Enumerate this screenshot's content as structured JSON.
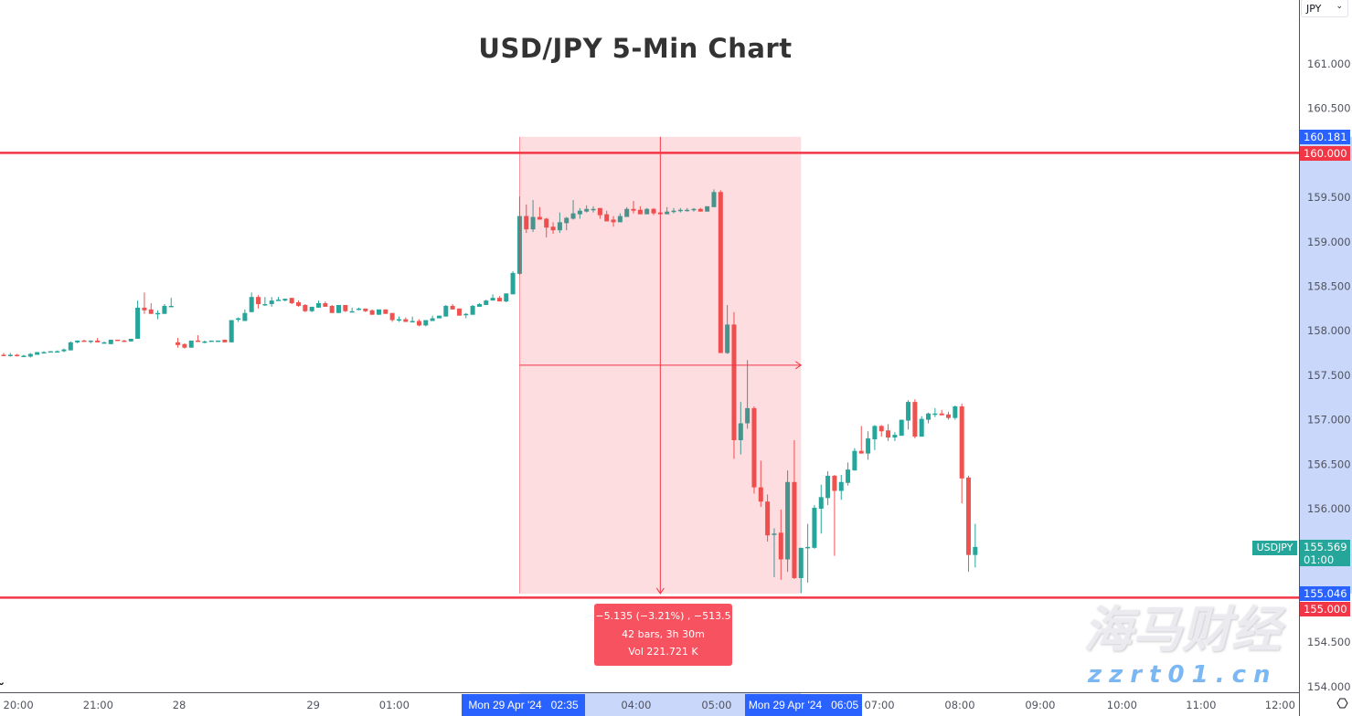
{
  "title": "USD/JPY 5-Min Chart",
  "currency_selector": {
    "value": "JPY"
  },
  "symbol": "USDJPY",
  "last_price": "155.569",
  "countdown": "01:00",
  "measure": {
    "line1": "−5.135 (−3.21%) , −513.5",
    "line2": "42 bars, 3h 30m",
    "line3": "Vol 221.721 K",
    "start_label": "Mon 29 Apr '24   02:35",
    "end_label": "Mon 29 Apr '24   06:05",
    "high_price": "160.181",
    "low_price": "155.046",
    "start_bar": 77,
    "end_bar": 119
  },
  "horizontal_lines": [
    {
      "price": 160.0,
      "label": "160.000",
      "color": "#f23645"
    },
    {
      "price": 155.0,
      "label": "155.000",
      "color": "#f23645"
    }
  ],
  "colors": {
    "up": "#26a69a",
    "down": "#ef5350",
    "measure": "#f23645",
    "range_label": "#2962ff"
  },
  "watermark": {
    "chinese": "海马财经",
    "site": "zzrt01.cn"
  },
  "chart_data": {
    "type": "candlestick",
    "title": "USD/JPY 5-Min Chart",
    "interval": "5m",
    "ylim": [
      153.95,
      161.7
    ],
    "grid": false,
    "y_ticks": [
      "161.000",
      "160.500",
      "159.500",
      "159.000",
      "158.500",
      "158.000",
      "157.500",
      "157.000",
      "156.500",
      "156.000",
      "154.500",
      "154.000"
    ],
    "x_ticks": [
      {
        "label": "20:00",
        "bar": 2.2
      },
      {
        "label": "21:00",
        "bar": 14.1
      },
      {
        "label": "28",
        "bar": 26.2
      },
      {
        "label": "29",
        "bar": 46.2
      },
      {
        "label": "01:00",
        "bar": 58.3
      },
      {
        "label": "04:00",
        "bar": 94.4
      },
      {
        "label": "05:00",
        "bar": 106.4
      },
      {
        "label": "07:00",
        "bar": 130.7
      },
      {
        "label": "08:00",
        "bar": 142.7
      },
      {
        "label": "09:00",
        "bar": 154.7
      },
      {
        "label": "10:00",
        "bar": 166.9
      },
      {
        "label": "11:00",
        "bar": 178.7
      },
      {
        "label": "12:00",
        "bar": 190.5
      }
    ],
    "ohlc_fields": [
      "open",
      "high",
      "low",
      "close"
    ],
    "candles": [
      [
        157.73,
        157.75,
        157.72,
        157.72
      ],
      [
        157.72,
        157.75,
        157.71,
        157.73
      ],
      [
        157.73,
        157.74,
        157.71,
        157.72
      ],
      [
        157.72,
        157.73,
        157.71,
        157.72
      ],
      [
        157.71,
        157.75,
        157.7,
        157.74
      ],
      [
        157.73,
        157.76,
        157.73,
        157.76
      ],
      [
        157.75,
        157.77,
        157.75,
        157.76
      ],
      [
        157.76,
        157.77,
        157.76,
        157.77
      ],
      [
        157.77,
        157.78,
        157.76,
        157.77
      ],
      [
        157.77,
        157.8,
        157.76,
        157.79
      ],
      [
        157.78,
        157.88,
        157.78,
        157.87
      ],
      [
        157.87,
        157.89,
        157.86,
        157.89
      ],
      [
        157.89,
        157.9,
        157.88,
        157.88
      ],
      [
        157.88,
        157.89,
        157.86,
        157.89
      ],
      [
        157.89,
        157.92,
        157.87,
        157.87
      ],
      [
        157.87,
        157.88,
        157.86,
        157.87
      ],
      [
        157.85,
        157.9,
        157.85,
        157.9
      ],
      [
        157.9,
        157.9,
        157.89,
        157.89
      ],
      [
        157.89,
        157.9,
        157.88,
        157.88
      ],
      [
        157.88,
        157.91,
        157.88,
        157.91
      ],
      [
        157.91,
        158.34,
        157.91,
        158.26
      ],
      [
        158.26,
        158.43,
        158.19,
        158.23
      ],
      [
        158.24,
        158.31,
        158.19,
        158.19
      ],
      [
        158.2,
        158.23,
        158.13,
        158.2
      ],
      [
        158.19,
        158.3,
        158.19,
        158.28
      ],
      [
        158.28,
        158.37,
        158.27,
        158.28
      ],
      [
        157.87,
        157.92,
        157.81,
        157.84
      ],
      [
        157.85,
        157.86,
        157.8,
        157.81
      ],
      [
        157.81,
        157.82,
        157.81,
        157.89
      ],
      [
        157.89,
        157.95,
        157.88,
        157.88
      ],
      [
        157.88,
        157.89,
        157.86,
        157.88
      ],
      [
        157.88,
        157.89,
        157.88,
        157.89
      ],
      [
        157.89,
        157.89,
        157.88,
        157.89
      ],
      [
        157.9,
        157.9,
        157.87,
        157.87
      ],
      [
        157.87,
        158.12,
        157.87,
        158.12
      ],
      [
        158.13,
        158.15,
        158.1,
        158.14
      ],
      [
        158.11,
        158.24,
        158.11,
        158.2
      ],
      [
        158.21,
        158.43,
        158.21,
        158.38
      ],
      [
        158.38,
        158.4,
        158.25,
        158.3
      ],
      [
        158.3,
        158.38,
        158.28,
        158.3
      ],
      [
        158.3,
        158.38,
        158.27,
        158.34
      ],
      [
        158.35,
        158.38,
        158.34,
        158.35
      ],
      [
        158.34,
        158.36,
        158.33,
        158.36
      ],
      [
        158.37,
        158.37,
        158.3,
        158.31
      ],
      [
        158.32,
        158.34,
        158.27,
        158.28
      ],
      [
        158.29,
        158.3,
        158.21,
        158.22
      ],
      [
        158.22,
        158.27,
        158.21,
        158.27
      ],
      [
        158.26,
        158.34,
        158.26,
        158.31
      ],
      [
        158.31,
        158.33,
        158.27,
        158.27
      ],
      [
        158.28,
        158.29,
        158.2,
        158.2
      ],
      [
        158.2,
        158.29,
        158.2,
        158.29
      ],
      [
        158.29,
        158.29,
        158.21,
        158.22
      ],
      [
        158.22,
        158.26,
        158.22,
        158.22
      ],
      [
        158.25,
        158.26,
        158.23,
        158.25
      ],
      [
        158.25,
        158.25,
        158.21,
        158.22
      ],
      [
        158.23,
        158.24,
        158.18,
        158.18
      ],
      [
        158.18,
        158.24,
        158.18,
        158.24
      ],
      [
        158.24,
        158.24,
        158.19,
        158.19
      ],
      [
        158.2,
        158.2,
        158.1,
        158.12
      ],
      [
        158.12,
        158.16,
        158.1,
        158.13
      ],
      [
        158.13,
        158.15,
        158.1,
        158.1
      ],
      [
        158.11,
        158.16,
        158.11,
        158.11
      ],
      [
        158.11,
        158.13,
        158.05,
        158.06
      ],
      [
        158.06,
        158.12,
        158.05,
        158.12
      ],
      [
        158.11,
        158.17,
        158.11,
        158.14
      ],
      [
        158.14,
        158.17,
        158.14,
        158.17
      ],
      [
        158.16,
        158.29,
        158.16,
        158.28
      ],
      [
        158.28,
        158.3,
        158.24,
        158.24
      ],
      [
        158.25,
        158.25,
        158.17,
        158.17
      ],
      [
        158.19,
        158.2,
        158.14,
        158.19
      ],
      [
        158.18,
        158.29,
        158.18,
        158.28
      ],
      [
        158.27,
        158.31,
        158.27,
        158.3
      ],
      [
        158.29,
        158.35,
        158.29,
        158.34
      ],
      [
        158.34,
        158.41,
        158.34,
        158.37
      ],
      [
        158.37,
        158.39,
        158.33,
        158.33
      ],
      [
        158.33,
        158.42,
        158.32,
        158.42
      ],
      [
        158.41,
        158.67,
        158.41,
        158.65
      ],
      [
        158.64,
        159.51,
        158.63,
        159.29
      ],
      [
        159.29,
        159.42,
        159.1,
        159.14
      ],
      [
        159.14,
        159.47,
        159.11,
        159.28
      ],
      [
        159.28,
        159.39,
        159.25,
        159.25
      ],
      [
        159.26,
        159.27,
        159.05,
        159.16
      ],
      [
        159.17,
        159.22,
        159.09,
        159.13
      ],
      [
        159.13,
        159.33,
        159.1,
        159.22
      ],
      [
        159.21,
        159.28,
        159.13,
        159.27
      ],
      [
        159.26,
        159.47,
        159.25,
        159.32
      ],
      [
        159.31,
        159.38,
        159.26,
        159.35
      ],
      [
        159.34,
        159.41,
        159.33,
        159.37
      ],
      [
        159.37,
        159.4,
        159.33,
        159.37
      ],
      [
        159.38,
        159.38,
        159.26,
        159.3
      ],
      [
        159.31,
        159.35,
        159.23,
        159.23
      ],
      [
        159.25,
        159.29,
        159.17,
        159.22
      ],
      [
        159.22,
        159.32,
        159.22,
        159.29
      ],
      [
        159.28,
        159.39,
        159.28,
        159.37
      ],
      [
        159.37,
        159.46,
        159.32,
        159.35
      ],
      [
        159.36,
        159.4,
        159.31,
        159.31
      ],
      [
        159.31,
        159.38,
        159.31,
        159.37
      ],
      [
        159.37,
        159.38,
        159.3,
        159.32
      ],
      [
        159.33,
        159.33,
        159.31,
        159.31
      ],
      [
        159.31,
        159.39,
        159.31,
        159.34
      ],
      [
        159.35,
        159.38,
        159.32,
        159.35
      ],
      [
        159.36,
        159.38,
        159.33,
        159.36
      ],
      [
        159.36,
        159.38,
        159.34,
        159.36
      ],
      [
        159.36,
        159.38,
        159.34,
        159.37
      ],
      [
        159.37,
        159.38,
        159.34,
        159.34
      ],
      [
        159.34,
        159.4,
        159.34,
        159.4
      ],
      [
        159.39,
        159.59,
        159.39,
        159.56
      ],
      [
        159.56,
        159.58,
        157.75,
        157.75
      ],
      [
        157.75,
        158.29,
        157.74,
        158.07
      ],
      [
        158.07,
        158.21,
        156.56,
        156.77
      ],
      [
        156.77,
        157.2,
        156.61,
        156.96
      ],
      [
        156.96,
        157.67,
        156.9,
        157.13
      ],
      [
        157.13,
        157.15,
        156.17,
        156.24
      ],
      [
        156.24,
        156.54,
        156.02,
        156.08
      ],
      [
        156.08,
        156.16,
        155.63,
        155.7
      ],
      [
        155.71,
        155.78,
        155.23,
        155.72
      ],
      [
        155.73,
        155.99,
        155.2,
        155.43
      ],
      [
        155.43,
        156.43,
        155.29,
        156.3
      ],
      [
        156.3,
        156.77,
        155.21,
        155.22
      ],
      [
        155.22,
        155.56,
        155.05,
        155.56
      ],
      [
        155.56,
        155.83,
        155.17,
        155.57
      ],
      [
        155.56,
        156.04,
        155.55,
        156.01
      ],
      [
        156.0,
        156.27,
        155.72,
        156.13
      ],
      [
        156.12,
        156.42,
        156.04,
        156.37
      ],
      [
        156.37,
        156.38,
        155.47,
        156.2
      ],
      [
        156.2,
        156.38,
        156.1,
        156.3
      ],
      [
        156.29,
        156.52,
        156.26,
        156.44
      ],
      [
        156.43,
        156.68,
        156.43,
        156.65
      ],
      [
        156.65,
        156.93,
        156.62,
        156.62
      ],
      [
        156.62,
        156.87,
        156.55,
        156.79
      ],
      [
        156.78,
        156.94,
        156.66,
        156.93
      ],
      [
        156.93,
        156.94,
        156.81,
        156.87
      ],
      [
        156.88,
        156.95,
        156.76,
        156.8
      ],
      [
        156.8,
        156.86,
        156.76,
        156.83
      ],
      [
        156.82,
        157.0,
        156.82,
        157.0
      ],
      [
        156.99,
        157.22,
        156.89,
        157.2
      ],
      [
        157.2,
        157.23,
        156.79,
        156.81
      ],
      [
        156.81,
        157.04,
        156.81,
        157.01
      ],
      [
        157.0,
        157.08,
        156.96,
        157.07
      ],
      [
        157.07,
        157.13,
        157.03,
        157.07
      ],
      [
        157.07,
        157.11,
        157.05,
        157.05
      ],
      [
        157.06,
        157.09,
        157.0,
        157.02
      ],
      [
        157.02,
        157.16,
        157.0,
        157.15
      ],
      [
        157.15,
        157.18,
        156.06,
        156.34
      ],
      [
        156.35,
        156.37,
        155.29,
        155.48
      ],
      [
        155.48,
        155.83,
        155.34,
        155.57
      ]
    ]
  }
}
